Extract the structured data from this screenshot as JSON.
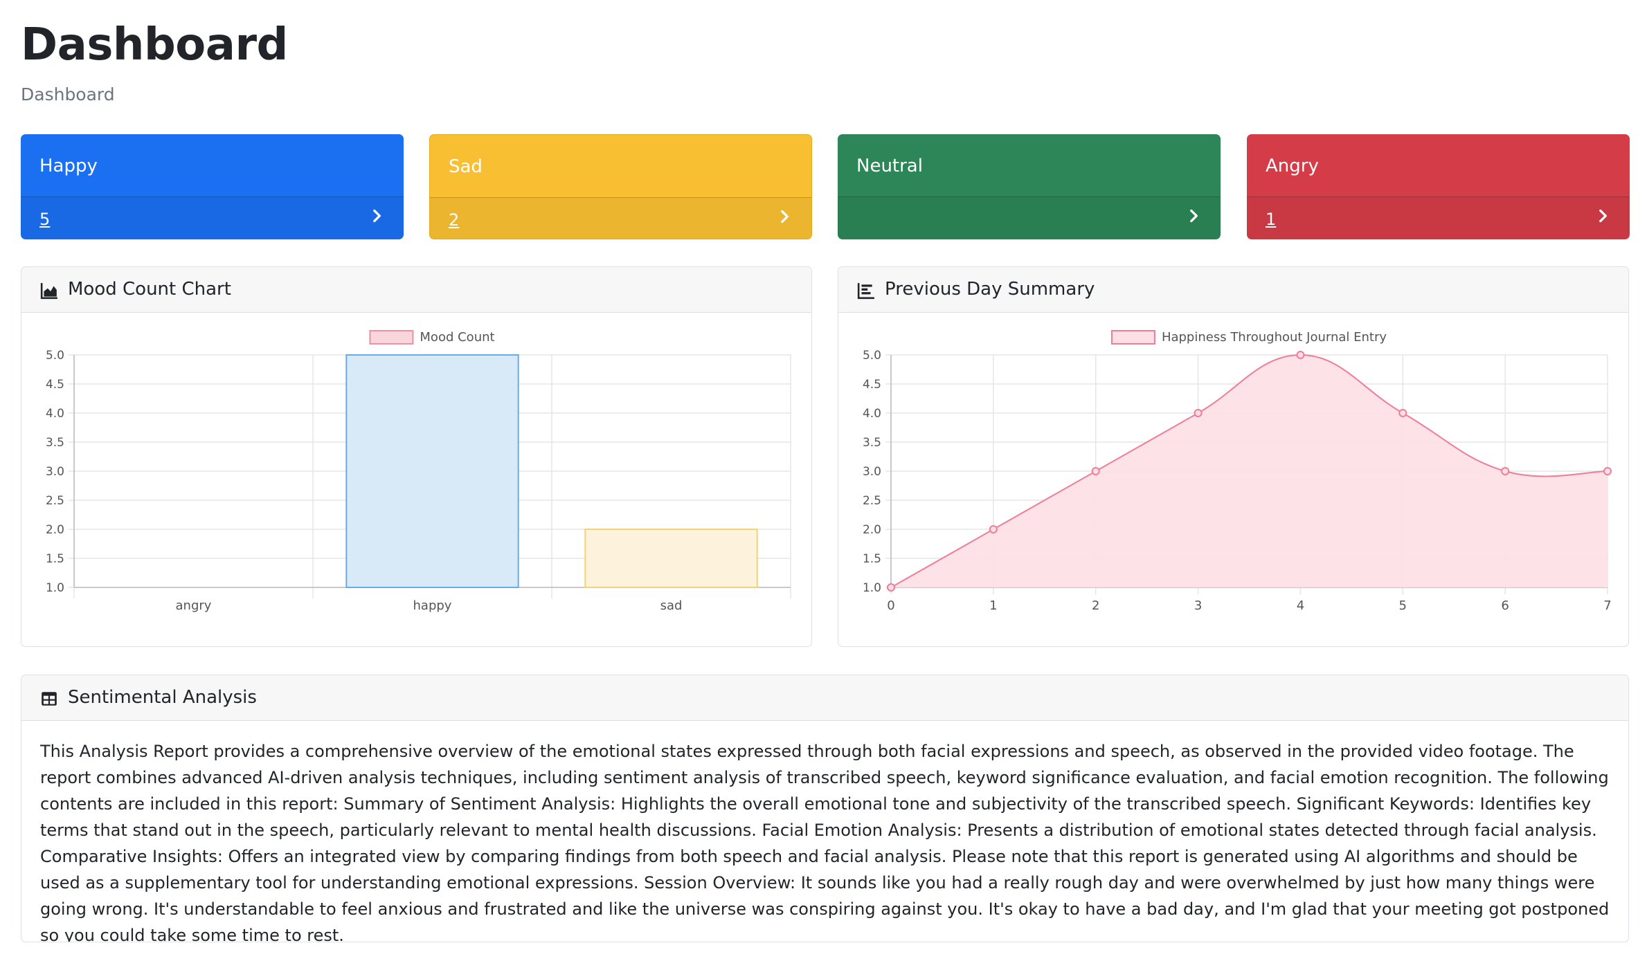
{
  "header": {
    "title": "Dashboard",
    "breadcrumb": "Dashboard"
  },
  "cards": [
    {
      "label": "Happy",
      "count": "5",
      "color": "#1b6ff1"
    },
    {
      "label": "Sad",
      "count": "2",
      "color": "#f9bf33"
    },
    {
      "label": "Neutral",
      "count": "",
      "color": "#2d8657"
    },
    {
      "label": "Angry",
      "count": "1",
      "color": "#d43d48"
    }
  ],
  "mood_panel": {
    "title": "Mood Count Chart",
    "icon": "area-chart-icon"
  },
  "summary_panel": {
    "title": "Previous Day Summary",
    "icon": "bar-chart-icon"
  },
  "sentiment_panel": {
    "title": "Sentimental Analysis",
    "icon": "table-icon",
    "text": "This Analysis Report provides a comprehensive overview of the emotional states expressed through both facial expressions and speech, as observed in the provided video footage. The report combines advanced AI-driven analysis techniques, including sentiment analysis of transcribed speech, keyword significance evaluation, and facial emotion recognition. The following contents are included in this report: Summary of Sentiment Analysis: Highlights the overall emotional tone and subjectivity of the transcribed speech. Significant Keywords: Identifies key terms that stand out in the speech, particularly relevant to mental health discussions. Facial Emotion Analysis: Presents a distribution of emotional states detected through facial analysis. Comparative Insights: Offers an integrated view by comparing findings from both speech and facial analysis. Please note that this report is generated using AI algorithms and should be used as a supplementary tool for understanding emotional expressions. Session Overview: It sounds like you had a really rough day and were overwhelmed by just how many things were going wrong. It's understandable to feel anxious and frustrated and like the universe was conspiring against you. It's okay to have a bad day, and I'm glad that your meeting got postponed so you could take some time to rest."
  },
  "chart_data": [
    {
      "type": "bar",
      "legend": "Mood Count",
      "categories": [
        "angry",
        "happy",
        "sad"
      ],
      "values": [
        1,
        5,
        2
      ],
      "ylim": [
        1.0,
        5.0
      ],
      "yticks": [
        "5.0",
        "4.5",
        "4.0",
        "3.5",
        "3.0",
        "2.5",
        "2.0",
        "1.5",
        "1.0"
      ],
      "bar_fills": [
        "#f8d6dc",
        "#d8e9f8",
        "#fdf3dc"
      ],
      "bar_strokes": [
        "#f08fa3",
        "#69ace5",
        "#f5d27a"
      ],
      "grid": true
    },
    {
      "type": "area",
      "legend": "Happiness Throughout Journal Entry",
      "x": [
        "0",
        "1",
        "2",
        "3",
        "4",
        "5",
        "6",
        "7"
      ],
      "values": [
        1,
        2,
        3,
        4,
        5,
        4,
        3,
        3
      ],
      "ylim": [
        1.0,
        5.0
      ],
      "yticks": [
        "5.0",
        "4.5",
        "4.0",
        "3.5",
        "3.0",
        "2.5",
        "2.0",
        "1.5",
        "1.0"
      ],
      "line_color": "#f27c98",
      "fill_color": "#fde0e6",
      "grid": true
    }
  ]
}
